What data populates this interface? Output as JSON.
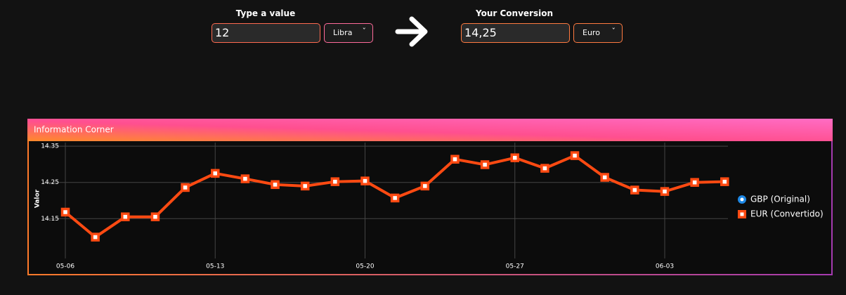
{
  "converter": {
    "input_label": "Type a value",
    "input_value": "12",
    "input_unit": "Libra",
    "output_label": "Your Conversion",
    "output_value": "14,25",
    "output_unit": "Euro"
  },
  "panel": {
    "title": "Information Corner"
  },
  "chart_data": {
    "type": "line",
    "y_label": "Valor",
    "categories": [
      "05-06",
      null,
      null,
      null,
      null,
      "05-13",
      null,
      null,
      null,
      null,
      "05-20",
      null,
      null,
      null,
      null,
      "05-27",
      null,
      null,
      null,
      null,
      "06-03",
      null,
      null
    ],
    "series": [
      {
        "name": "GBP (Original)",
        "color": "#1e88e5",
        "values": [
          null,
          null,
          null,
          null,
          null,
          null,
          null,
          null,
          null,
          null,
          null,
          null,
          null,
          null,
          null,
          null,
          null,
          null,
          null,
          null,
          null,
          null,
          null
        ]
      },
      {
        "name": "EUR (Convertido)",
        "color": "#ff4a12",
        "values": [
          14.168,
          14.099,
          14.155,
          14.155,
          14.236,
          14.275,
          14.26,
          14.244,
          14.24,
          14.252,
          14.254,
          14.207,
          14.24,
          14.314,
          14.299,
          14.318,
          14.289,
          14.324,
          14.264,
          14.229,
          14.225,
          14.25,
          14.252
        ]
      }
    ],
    "ylim": [
      14.04,
      14.36
    ],
    "yticks": [
      14.15,
      14.25,
      14.35
    ],
    "grid": true,
    "legend": "right"
  }
}
